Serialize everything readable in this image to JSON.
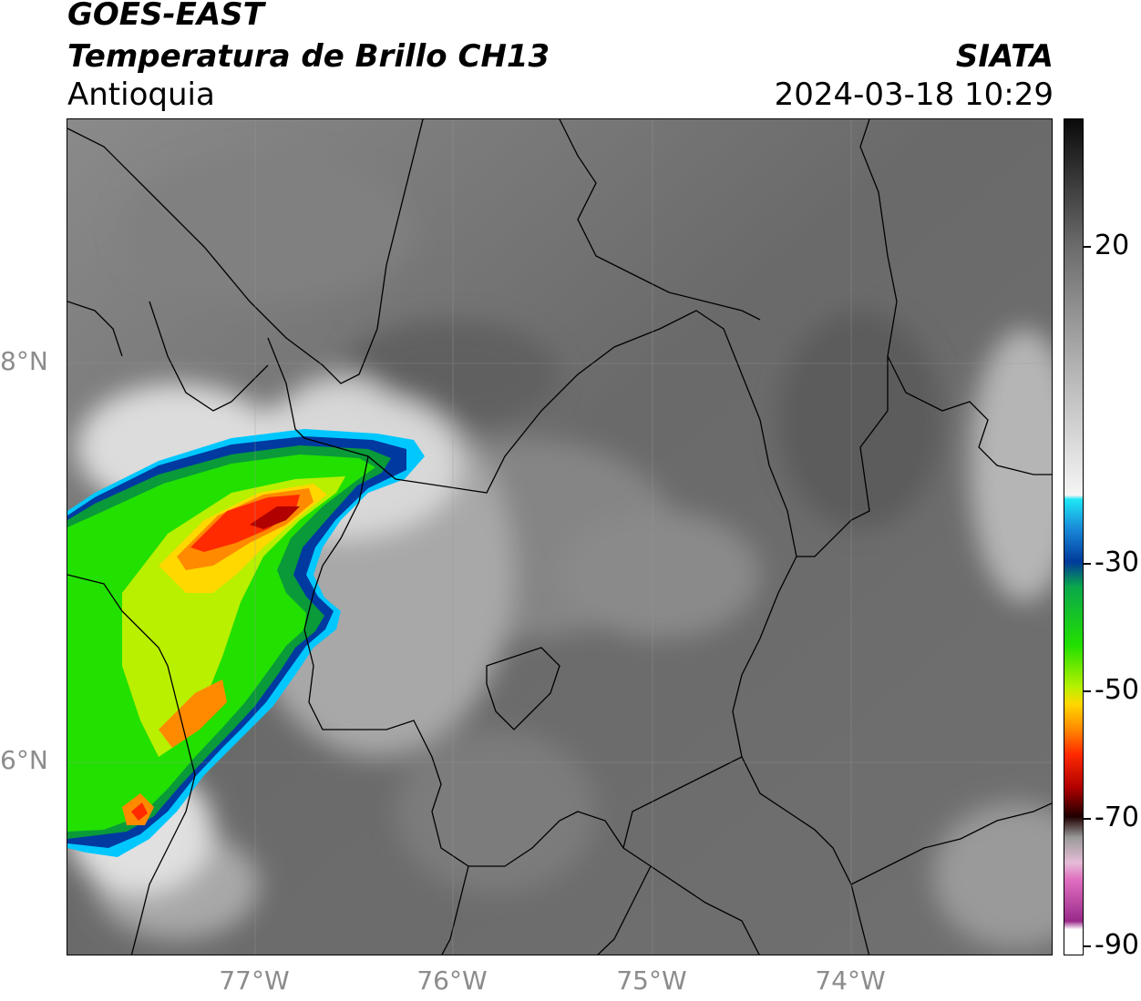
{
  "header": {
    "satellite": "GOES-EAST",
    "product": "Temperatura de Brillo CH13",
    "region": "Antioquia",
    "organization": "SIATA",
    "datetime": "2024-03-18 10:29"
  },
  "axes": {
    "lat_labels": [
      "8°N",
      "6°N"
    ],
    "lon_labels": [
      "77°W",
      "76°W",
      "75°W",
      "74°W"
    ]
  },
  "colorbar": {
    "ticks": [
      "20",
      "-30",
      "-50",
      "-70",
      "-90"
    ],
    "stops": [
      "#0a0a0a",
      "#6a6a6a",
      "#b4b4b4",
      "#f5f5f5",
      "#1ee6f5",
      "#1a8ad8",
      "#003a9a",
      "#0aa84a",
      "#22e000",
      "#b8f000",
      "#ffd800",
      "#ff8a00",
      "#ff2a00",
      "#b00000",
      "#200000",
      "#9a9a9a",
      "#e5bcd8",
      "#e070c0",
      "#9a2a8a",
      "#ffffff"
    ]
  },
  "colors": {
    "cloud_cold": "#e60000",
    "cloud_orange": "#ff8c00",
    "cloud_yellow": "#f0f000",
    "cloud_green": "#1ee600",
    "cloud_dark_green": "#0a9a3a",
    "cloud_blue": "#003aa0",
    "cloud_cyan": "#00c8ff",
    "ground": "#6d6d6d"
  }
}
